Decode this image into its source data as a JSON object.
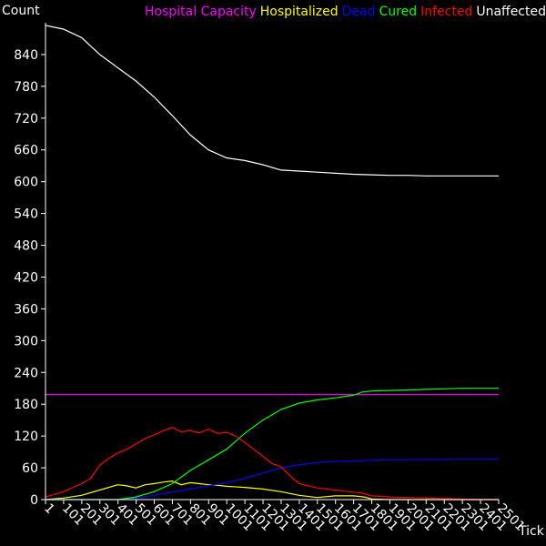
{
  "chart_data": {
    "type": "line",
    "ylabel": "Count",
    "xlabel": "Tick",
    "ylim": [
      0,
      900
    ],
    "xlim": [
      1,
      2501
    ],
    "y_ticks": [
      0,
      60,
      120,
      180,
      240,
      300,
      360,
      420,
      480,
      540,
      600,
      660,
      720,
      780,
      840
    ],
    "x_ticks": [
      "1",
      "101",
      "201",
      "301",
      "401",
      "501",
      "601",
      "701",
      "801",
      "901",
      "1001",
      "1101",
      "1201",
      "1301",
      "1401",
      "1501",
      "1601",
      "1701",
      "1801",
      "1901",
      "2001",
      "2101",
      "2201",
      "2301",
      "2401",
      "2501"
    ],
    "x_tick_values": [
      1,
      101,
      201,
      301,
      401,
      501,
      601,
      701,
      801,
      901,
      1001,
      1101,
      1201,
      1301,
      1401,
      1501,
      1601,
      1701,
      1801,
      1901,
      2001,
      2101,
      2201,
      2301,
      2401,
      2501
    ],
    "legend_placement": "top-right",
    "series": [
      {
        "name": "Hospital Capacity",
        "color": "#ff00ff",
        "x": [
          1,
          2501
        ],
        "y": [
          198,
          198
        ]
      },
      {
        "name": "Hospitalized",
        "color": "#ffff00",
        "x": [
          1,
          100,
          200,
          300,
          400,
          450,
          500,
          550,
          600,
          650,
          700,
          750,
          800,
          850,
          900,
          950,
          1000,
          1100,
          1200,
          1300,
          1400,
          1500,
          1600,
          1700,
          1760,
          1800,
          1900,
          2000,
          2501
        ],
        "y": [
          0,
          3,
          8,
          18,
          28,
          26,
          22,
          28,
          30,
          33,
          35,
          28,
          32,
          30,
          28,
          27,
          25,
          23,
          20,
          15,
          8,
          4,
          7,
          7,
          5,
          1,
          0,
          0,
          0
        ]
      },
      {
        "name": "Dead",
        "color": "#0000ff",
        "x": [
          1,
          400,
          450,
          500,
          550,
          600,
          700,
          800,
          900,
          1000,
          1100,
          1200,
          1300,
          1400,
          1500,
          1600,
          1700,
          1800,
          1900,
          2000,
          2100,
          2200,
          2300,
          2400,
          2501
        ],
        "y": [
          0,
          0,
          1,
          3,
          5,
          8,
          14,
          20,
          26,
          32,
          40,
          50,
          60,
          66,
          70,
          72,
          73,
          74,
          75,
          75,
          76,
          76,
          77,
          77,
          77
        ]
      },
      {
        "name": "Cured",
        "color": "#00ff00",
        "x": [
          1,
          400,
          500,
          600,
          700,
          800,
          900,
          1000,
          1100,
          1200,
          1300,
          1400,
          1500,
          1600,
          1700,
          1750,
          1800,
          1900,
          2000,
          2100,
          2200,
          2300,
          2400,
          2501
        ],
        "y": [
          0,
          0,
          5,
          15,
          30,
          55,
          75,
          95,
          125,
          150,
          170,
          182,
          188,
          192,
          197,
          203,
          205,
          206,
          207,
          208,
          209,
          210,
          210,
          210
        ]
      },
      {
        "name": "Infected",
        "color": "#ff0000",
        "x": [
          1,
          100,
          200,
          250,
          300,
          350,
          400,
          450,
          500,
          550,
          600,
          650,
          700,
          750,
          800,
          850,
          900,
          950,
          1000,
          1050,
          1100,
          1150,
          1200,
          1250,
          1300,
          1350,
          1400,
          1500,
          1600,
          1700,
          1750,
          1800,
          1900,
          2000,
          2100,
          2200,
          2300,
          2400,
          2501
        ],
        "y": [
          5,
          15,
          30,
          40,
          65,
          78,
          88,
          95,
          105,
          115,
          122,
          130,
          136,
          128,
          130,
          126,
          133,
          125,
          127,
          120,
          108,
          95,
          82,
          68,
          62,
          45,
          30,
          22,
          18,
          14,
          12,
          7,
          5,
          4,
          3,
          2,
          1,
          0,
          0
        ]
      },
      {
        "name": "Unaffected",
        "color": "#ffffff",
        "x": [
          1,
          100,
          200,
          300,
          400,
          500,
          600,
          700,
          800,
          900,
          1000,
          1100,
          1200,
          1300,
          1400,
          1500,
          1600,
          1700,
          1800,
          1900,
          2000,
          2100,
          2200,
          2300,
          2400,
          2501
        ],
        "y": [
          895,
          888,
          872,
          840,
          815,
          790,
          760,
          725,
          688,
          660,
          645,
          640,
          632,
          622,
          620,
          618,
          616,
          614,
          613,
          612,
          612,
          611,
          611,
          611,
          611,
          611
        ]
      }
    ]
  }
}
